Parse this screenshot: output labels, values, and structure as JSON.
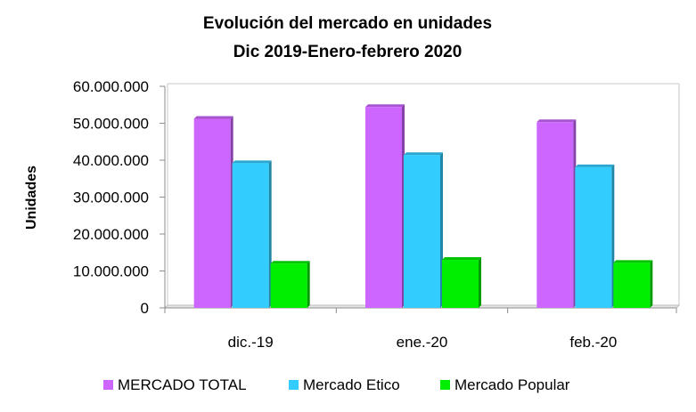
{
  "chart_data": {
    "type": "bar",
    "title_line1": "Evolución del mercado en unidades",
    "title_line2": "Dic 2019-Enero-febrero 2020",
    "ylabel": "Unidades",
    "xlabel": "",
    "ylim": [
      0,
      60000000
    ],
    "yticks": [
      0,
      10000000,
      20000000,
      30000000,
      40000000,
      50000000,
      60000000
    ],
    "ytick_labels": [
      "0",
      "10.000.000",
      "20.000.000",
      "30.000.000",
      "40.000.000",
      "50.000.000",
      "60.000.000"
    ],
    "categories": [
      "dic.-19",
      "ene.-20",
      "feb.-20"
    ],
    "series": [
      {
        "name": "MERCADO TOTAL",
        "color": "#cc66ff",
        "values": [
          51200000,
          54400000,
          50300000
        ]
      },
      {
        "name": "Mercado Etico",
        "color": "#33ccff",
        "values": [
          39200000,
          41400000,
          38100000
        ]
      },
      {
        "name": "Mercado Popular",
        "color": "#00ee00",
        "values": [
          12000000,
          13000000,
          12200000
        ]
      }
    ],
    "grid": false,
    "legend": "bottom"
  }
}
